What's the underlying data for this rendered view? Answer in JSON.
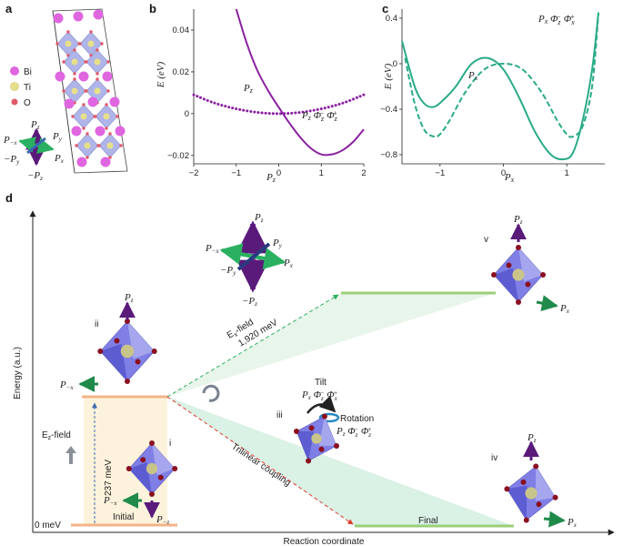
{
  "panels": {
    "a": "a",
    "b": "b",
    "c": "c",
    "d": "d"
  },
  "panel_a": {
    "legend": [
      {
        "label": "Bi",
        "color": "#e066e0"
      },
      {
        "label": "Ti",
        "color": "#e6e08a"
      },
      {
        "label": "O",
        "color": "#e05a6a"
      }
    ],
    "axes": {
      "pz": "P",
      "pz_sub": "z",
      "py": "P",
      "py_sub": "y",
      "px": "P",
      "px_sub": "x",
      "nx": "P",
      "nx_sub": "−x",
      "ny": "−P",
      "ny_sub": "y",
      "nz": "−P",
      "nz_sub": "z"
    }
  },
  "chart_data": [
    {
      "type": "line",
      "panel": "b",
      "ylabel": "E (eV)",
      "xlabel": "P_z",
      "xlim": [
        -2,
        2
      ],
      "ylim": [
        -0.024,
        0.05
      ],
      "xticks": [
        "−2",
        "−1",
        "0",
        "1",
        "2"
      ],
      "yticks": [
        "0.04",
        "0.02",
        "0",
        "−0.02"
      ],
      "series": [
        {
          "name": "P_z",
          "style": "dotted",
          "color": "#8a1fa0",
          "x": [
            -2,
            -1.5,
            -1,
            -0.5,
            0,
            0.5,
            1,
            1.5,
            2
          ],
          "y": [
            0.009,
            0.005,
            0.0023,
            0.0006,
            0.0,
            0.0006,
            0.0023,
            0.005,
            0.009
          ]
        },
        {
          "name": "P_z Φz− Φz+",
          "style": "solid",
          "color": "#8a1fa0",
          "x": [
            -1,
            -0.75,
            -0.5,
            -0.25,
            0,
            0.25,
            0.5,
            0.75,
            1,
            1.25,
            1.5,
            1.75,
            2
          ],
          "y": [
            0.05,
            0.0335,
            0.0205,
            0.011,
            0.003,
            -0.0045,
            -0.0112,
            -0.0165,
            -0.0195,
            -0.0195,
            -0.0175,
            -0.0135,
            -0.0075
          ]
        }
      ]
    },
    {
      "type": "line",
      "panel": "c",
      "ylabel": "E (eV)",
      "xlabel": "P_x",
      "xlim": [
        -1.6,
        1.6
      ],
      "ylim": [
        -0.88,
        0.48
      ],
      "xticks": [
        "−1",
        "0",
        "1"
      ],
      "yticks": [
        "0.4",
        "0",
        "−0.4",
        "−0.8"
      ],
      "series": [
        {
          "name": "P_x",
          "style": "dashed",
          "color": "#2aab88",
          "x": [
            -1.55,
            -1.4,
            -1.25,
            -1.1,
            -1.0,
            -0.85,
            -0.6,
            -0.3,
            0,
            0.3,
            0.6,
            0.85,
            1.0,
            1.1,
            1.25,
            1.4,
            1.5
          ],
          "y": [
            0.05,
            -0.35,
            -0.58,
            -0.64,
            -0.62,
            -0.5,
            -0.25,
            -0.05,
            0.0,
            -0.05,
            -0.25,
            -0.5,
            -0.62,
            -0.64,
            -0.55,
            -0.2,
            0.45
          ]
        },
        {
          "name": "P_x Φz− Φx+",
          "style": "solid",
          "color": "#2aab88",
          "x": [
            -1.6,
            -1.4,
            -1.25,
            -1.1,
            -0.95,
            -0.75,
            -0.5,
            -0.25,
            0,
            0.25,
            0.5,
            0.75,
            0.95,
            1.1,
            1.25,
            1.4,
            1.5
          ],
          "y": [
            0.2,
            -0.2,
            -0.35,
            -0.38,
            -0.32,
            -0.2,
            0.0,
            0.05,
            -0.05,
            -0.3,
            -0.6,
            -0.8,
            -0.84,
            -0.78,
            -0.5,
            -0.05,
            0.45
          ]
        }
      ]
    }
  ],
  "panel_b_labels": {
    "pz": "P",
    "pz_sub": "z",
    "pzphi": "P",
    "pzphi_rest": "z Φ",
    "s1": "z",
    "s2": "−",
    "s3": "Φ",
    "s4": "z",
    "s5": "+"
  },
  "panel_c_labels": {
    "px": "P",
    "px_sub": "x",
    "top": "P",
    "top_sub": "x",
    "t1": "Φ",
    "t2": "z",
    "t3": "−",
    "t4": "Φ",
    "t5": "x",
    "t6": "+"
  },
  "panel_d": {
    "y_axis_label": "Energy (a.u.)",
    "x_axis_label": "Reaction coordinate",
    "zero_label": "0 meV",
    "initial": "Initial",
    "final": "Final",
    "ez_field": "E",
    "ez_sub": "z",
    "ez_rest": "-field",
    "barrier_237": "237 meV",
    "ex_field": "E",
    "ex_sub": "x",
    "ex_rest": "-field",
    "barrier_1920": "1,920 meV",
    "trilinear": "Trilinear coupling",
    "tilt": "Tilt",
    "rotation": "Rotation",
    "states": {
      "i": "i",
      "ii": "ii",
      "iii": "iii",
      "iv": "iv",
      "v": "v"
    },
    "tilt_formula": "P",
    "rot_formula": "P",
    "pz": "P",
    "z": "z",
    "px": "P",
    "x": "x",
    "nx": "−x",
    "nz": "−z"
  }
}
